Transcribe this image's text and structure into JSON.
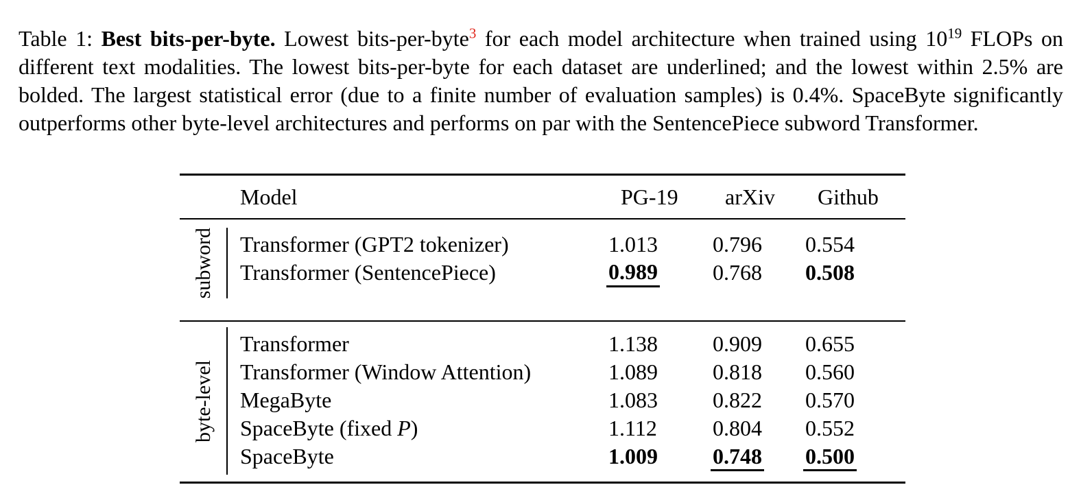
{
  "colors": {
    "background": "#ffffff",
    "text": "#000000",
    "footnote_red": "#e02419"
  },
  "caption": {
    "label": "Table 1: ",
    "title_bold": "Best bits-per-byte.",
    "pre_footnote": " Lowest bits-per-byte",
    "footnote_mark": "3",
    "after_footnote": " for each model architecture when trained using 10",
    "flops_exponent": "19",
    "rest": " FLOPs on different text modalities. The lowest bits-per-byte for each dataset are underlined; and the lowest within 2.5% are bolded. The largest statistical error (due to a finite number of evaluation samples) is 0.4%. SpaceByte significantly outperforms other byte-level architectures and performs on par with the SentencePiece subword Transformer."
  },
  "table": {
    "header": {
      "model_col": "Model",
      "data_cols": [
        "PG-19",
        "arXiv",
        "Github"
      ]
    },
    "groups": [
      {
        "label": "subword",
        "rows": [
          {
            "name": "Transformer (GPT2 tokenizer)",
            "values": [
              "1.013",
              "0.796",
              "0.554"
            ],
            "emphasis": [
              null,
              null,
              null
            ]
          },
          {
            "name": "Transformer (SentencePiece)",
            "values": [
              "0.989",
              "0.768",
              "0.508"
            ],
            "emphasis": [
              "bold-underline",
              null,
              "bold"
            ]
          }
        ]
      },
      {
        "label": "byte-level",
        "rows": [
          {
            "name": "Transformer",
            "values": [
              "1.138",
              "0.909",
              "0.655"
            ],
            "emphasis": [
              null,
              null,
              null
            ]
          },
          {
            "name": "Transformer (Window Attention)",
            "values": [
              "1.089",
              "0.818",
              "0.560"
            ],
            "emphasis": [
              null,
              null,
              null
            ]
          },
          {
            "name": "MegaByte",
            "values": [
              "1.083",
              "0.822",
              "0.570"
            ],
            "emphasis": [
              null,
              null,
              null
            ]
          },
          {
            "name_pre": "SpaceByte (fixed ",
            "name_var": "P",
            "name_post": ")",
            "values": [
              "1.112",
              "0.804",
              "0.552"
            ],
            "emphasis": [
              null,
              null,
              null
            ]
          },
          {
            "name": "SpaceByte",
            "values": [
              "1.009",
              "0.748",
              "0.500"
            ],
            "emphasis": [
              "bold",
              "bold-underline",
              "bold-underline"
            ]
          }
        ]
      }
    ]
  }
}
